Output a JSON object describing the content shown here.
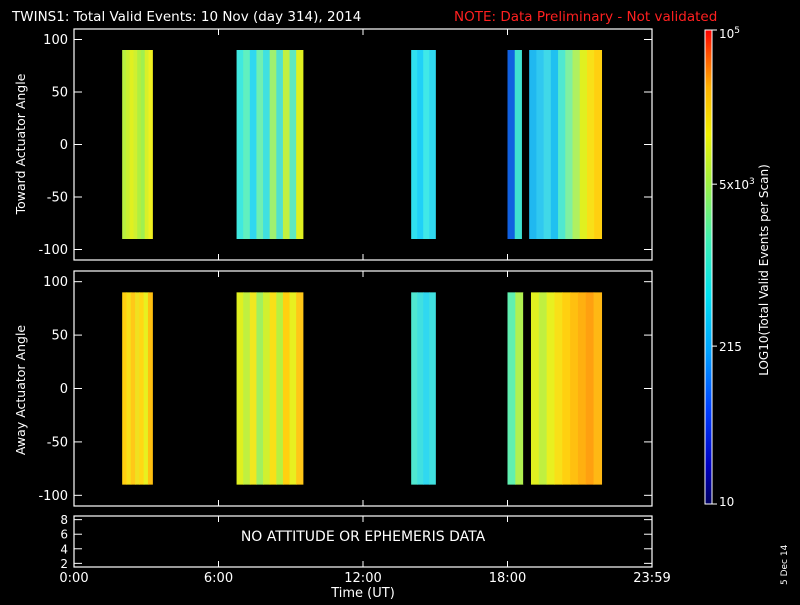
{
  "header": {
    "title": "TWINS1: Total Valid Events: 10 Nov (day 314), 2014",
    "note": "NOTE: Data Preliminary - Not validated"
  },
  "colors": {
    "background": "#000000",
    "frame": "#ffffff",
    "note": "#ff2020"
  },
  "chart_data": {
    "type": "heatmap",
    "x_range_hours": [
      0,
      24
    ],
    "x_ticks": [
      "0:00",
      "6:00",
      "12:00",
      "18:00",
      "23:59"
    ],
    "x_tick_hours": [
      0,
      6,
      12,
      18,
      24
    ],
    "xlabel": "Time (UT)",
    "panels": [
      {
        "ylabel": "Toward Actuator Angle",
        "y_range": [
          -110,
          110
        ],
        "y_ticks": [
          100,
          50,
          0,
          -50,
          -100
        ],
        "data_y_extent": [
          -90,
          90
        ],
        "blocks": [
          {
            "start_h": 2.0,
            "end_h": 3.25,
            "colors": [
              "#b8f040",
              "#c8f030",
              "#e0f020",
              "#d0f030",
              "#b0f040",
              "#a0f050",
              "#d8f028",
              "#f0f020"
            ]
          },
          {
            "start_h": 6.75,
            "end_h": 9.5,
            "colors": [
              "#40e8e0",
              "#60f0c0",
              "#30d8f0",
              "#70f0b0",
              "#40e0e0",
              "#a0f070",
              "#50e0d0",
              "#c0f040",
              "#60e8c0",
              "#e0f020"
            ]
          },
          {
            "start_h": 14.0,
            "end_h": 15.0,
            "colors": [
              "#30e0f0",
              "#20d0f8",
              "#40e8e8",
              "#30d8f0"
            ]
          },
          {
            "start_h": 18.0,
            "end_h": 21.9,
            "colors": [
              "#1060e0",
              "#40e0d0",
              "#000000",
              "#20b8f0",
              "#30c8f0",
              "#40d8e8",
              "#20c0f0",
              "#50e8d0",
              "#80f0a0",
              "#b0f060",
              "#e0f020",
              "#f8e018",
              "#ffd010"
            ]
          }
        ]
      },
      {
        "ylabel": "Away Actuator Angle",
        "y_range": [
          -110,
          110
        ],
        "y_ticks": [
          100,
          50,
          0,
          -50,
          -100
        ],
        "data_y_extent": [
          -90,
          90
        ],
        "blocks": [
          {
            "start_h": 2.0,
            "end_h": 3.25,
            "colors": [
              "#ffd010",
              "#f8e018",
              "#ffc818",
              "#f0e020",
              "#ffd814",
              "#e8f020",
              "#ffc010"
            ]
          },
          {
            "start_h": 6.75,
            "end_h": 9.5,
            "colors": [
              "#e0f020",
              "#c0f040",
              "#f0e820",
              "#a0f060",
              "#d0f030",
              "#f8e018",
              "#b8f040",
              "#ffd010",
              "#e8f020",
              "#ffc818"
            ]
          },
          {
            "start_h": 14.0,
            "end_h": 15.0,
            "colors": [
              "#50e8d0",
              "#40e0e0",
              "#30d8f0",
              "#40e0e0"
            ]
          },
          {
            "start_h": 18.0,
            "end_h": 21.9,
            "colors": [
              "#60f0b0",
              "#b0f050",
              "#000000",
              "#e0f020",
              "#c0f040",
              "#e8f020",
              "#f8e018",
              "#ffd010",
              "#ffc010",
              "#ffb010",
              "#ffa010",
              "#ffb814"
            ]
          }
        ]
      },
      {
        "ylabel": "",
        "y_range": [
          1.5,
          8.5
        ],
        "y_ticks": [
          8,
          6,
          4,
          2
        ],
        "message": "NO ATTITUDE OR EPHEMERIS DATA"
      }
    ],
    "colorbar": {
      "label": "LOG10(Total Valid Events per Scan)",
      "scale": "log",
      "range": [
        10,
        100000
      ],
      "ticks": [
        {
          "value": 100000,
          "label": "10^5"
        },
        {
          "value": 5000,
          "label": "5x10^3"
        },
        {
          "value": 215,
          "label": "215"
        },
        {
          "value": 10,
          "label": "10"
        }
      ]
    }
  },
  "footer": {
    "date_stamp": "5 Dec 14"
  }
}
